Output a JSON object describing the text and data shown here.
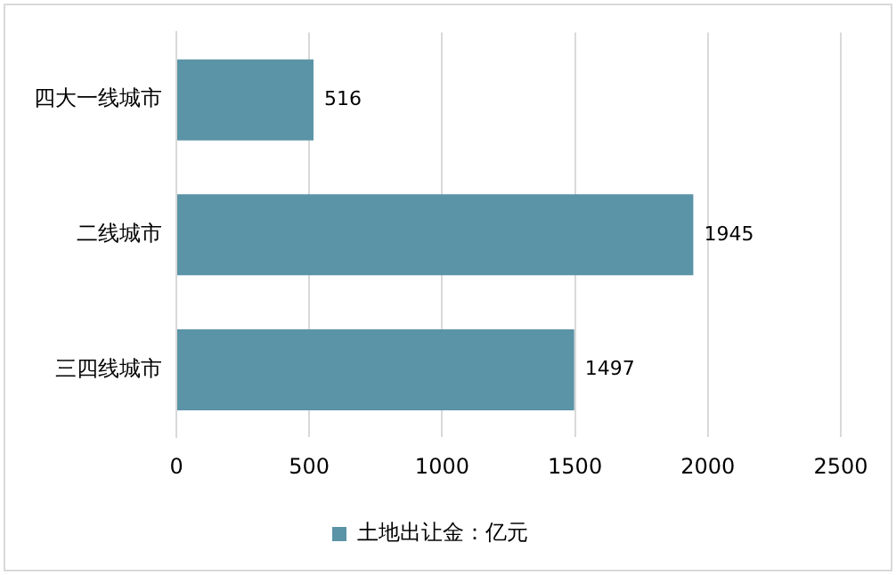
{
  "chart_data": {
    "type": "bar",
    "orientation": "horizontal",
    "categories": [
      "四大一线城市",
      "二线城市",
      "三四线城市"
    ],
    "series": [
      {
        "name": "土地出让金：亿元",
        "color": "#5b93a7",
        "values": [
          516,
          1945,
          1497
        ]
      }
    ],
    "xlim": [
      0,
      2500
    ],
    "xticks": [
      0,
      500,
      1000,
      1500,
      2000,
      2500
    ],
    "grid": "x",
    "legend": "bottom",
    "data_labels": true
  }
}
